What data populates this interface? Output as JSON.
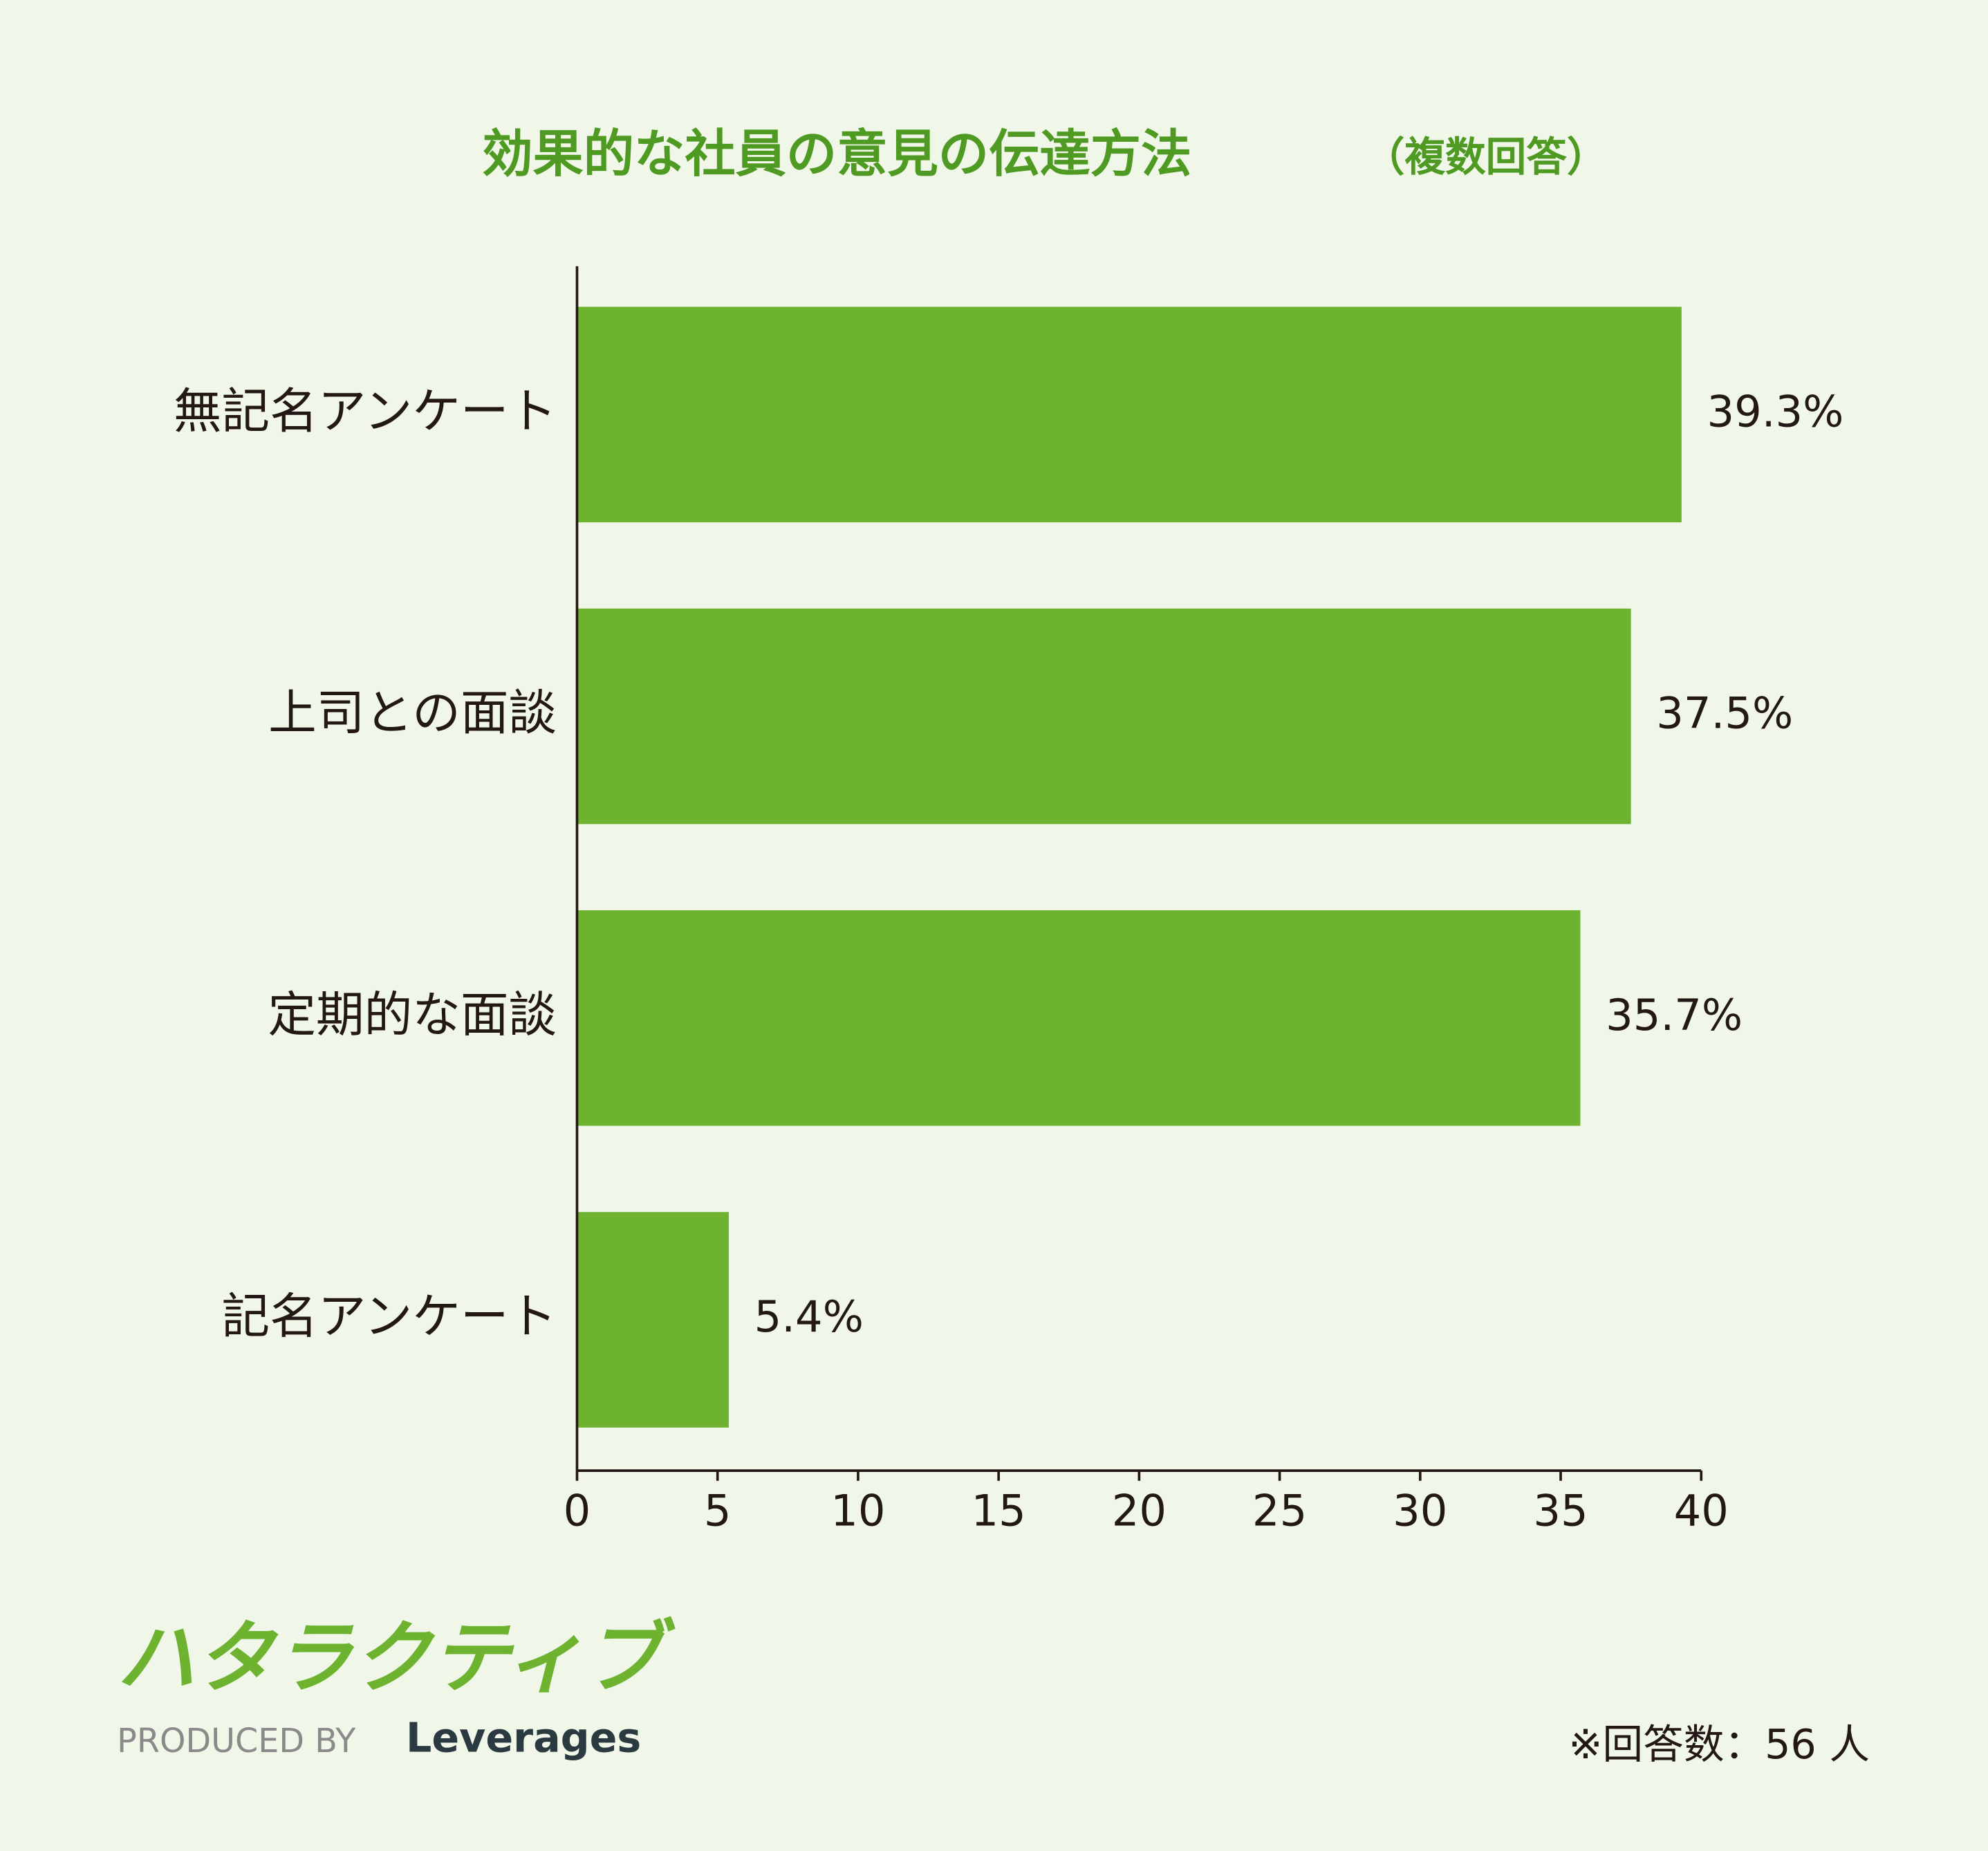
{
  "chart_data": {
    "type": "bar",
    "orientation": "horizontal",
    "title": "効果的な社員の意見の伝達方法",
    "subtitle": "（複数回答）",
    "categories": [
      "無記名アンケート",
      "上司との面談",
      "定期的な面談",
      "記名アンケート"
    ],
    "values": [
      39.3,
      37.5,
      35.7,
      5.4
    ],
    "value_labels": [
      "39.3%",
      "37.5%",
      "35.7%",
      "5.4%"
    ],
    "color": "#6db32f",
    "xlim": [
      0,
      40
    ],
    "xticks": [
      0,
      5,
      10,
      15,
      20,
      25,
      30,
      35,
      40
    ],
    "footnote": "※回答数：56 人"
  },
  "logo": {
    "name": "ハタラクティブ",
    "produced_by": "PRODUCED BY",
    "company": "Leverages"
  }
}
